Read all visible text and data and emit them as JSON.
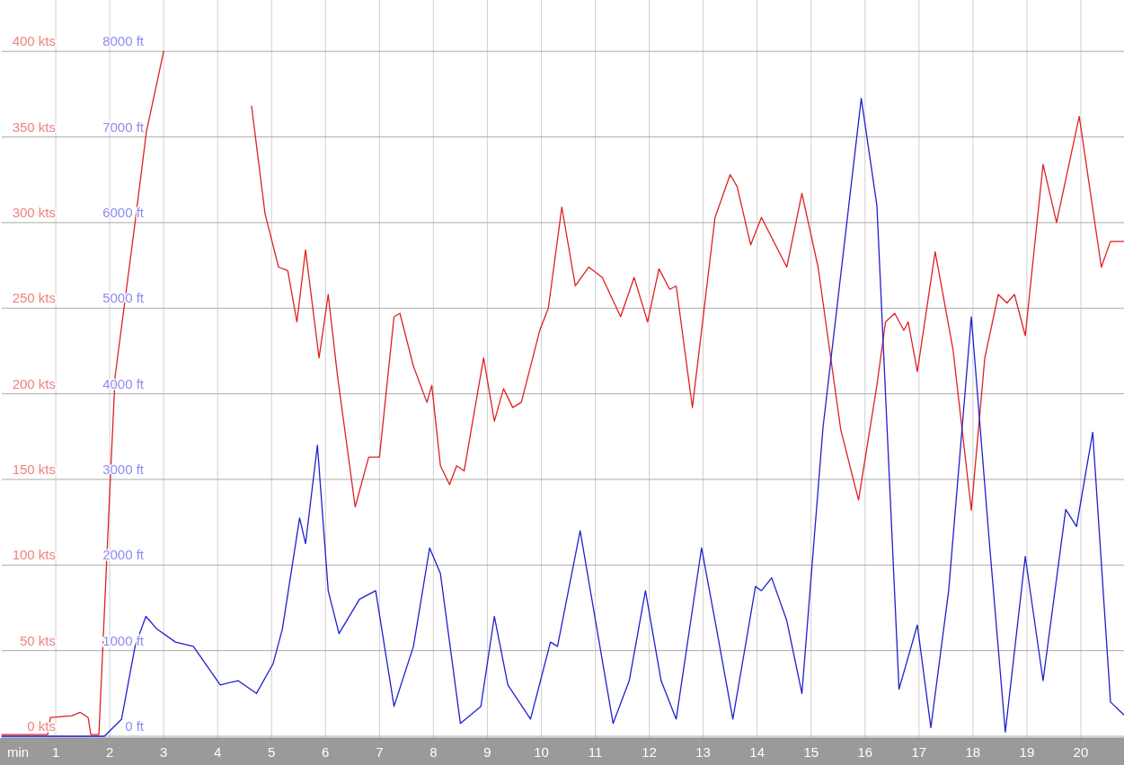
{
  "chart_data": {
    "type": "line",
    "xlabel": "min",
    "xlim": [
      0,
      20.8
    ],
    "xticks": [
      1,
      2,
      3,
      4,
      5,
      6,
      7,
      8,
      9,
      10,
      11,
      12,
      13,
      14,
      15,
      16,
      17,
      18,
      19,
      20
    ],
    "ylim": [
      0,
      430
    ],
    "yticks": [
      {
        "value": 0,
        "label": "0 kts"
      },
      {
        "value": 50,
        "label": "50 kts"
      },
      {
        "value": 100,
        "label": "100 kts"
      },
      {
        "value": 150,
        "label": "150 kts"
      },
      {
        "value": 200,
        "label": "200 kts"
      },
      {
        "value": 250,
        "label": "250 kts"
      },
      {
        "value": 300,
        "label": "300 kts"
      },
      {
        "value": 350,
        "label": "350 kts"
      },
      {
        "value": 400,
        "label": "400 kts"
      }
    ],
    "y2lim": [
      0,
      8600
    ],
    "y2ticks": [
      {
        "value": 0,
        "label": "0 ft"
      },
      {
        "value": 1000,
        "label": "1000 ft"
      },
      {
        "value": 2000,
        "label": "2000 ft"
      },
      {
        "value": 3000,
        "label": "3000 ft"
      },
      {
        "value": 4000,
        "label": "4000 ft"
      },
      {
        "value": 5000,
        "label": "5000 ft"
      },
      {
        "value": 6000,
        "label": "6000 ft"
      },
      {
        "value": 7000,
        "label": "7000 ft"
      },
      {
        "value": 8000,
        "label": "8000 ft"
      }
    ],
    "grid": true,
    "marker": "none",
    "line_style": "solid",
    "series": [
      {
        "color": "#e02020",
        "x": [
          0,
          0.85,
          0.9,
          1.3,
          1.45,
          1.6,
          1.65,
          1.8,
          2.0,
          2.1,
          2.47,
          2.68,
          3.0,
          3.17,
          3.8,
          4.43,
          4.63,
          4.88,
          5.13,
          5.3,
          5.47,
          5.63,
          5.88,
          6.05,
          6.22,
          6.55,
          6.8,
          7.0,
          7.27,
          7.38,
          7.63,
          7.88,
          7.97,
          8.13,
          8.3,
          8.43,
          8.57,
          8.93,
          9.13,
          9.3,
          9.47,
          9.63,
          9.97,
          10.13,
          10.38,
          10.63,
          10.88,
          11.13,
          11.47,
          11.72,
          11.97,
          12.18,
          12.38,
          12.5,
          12.8,
          13.22,
          13.5,
          13.63,
          13.88,
          14.08,
          14.55,
          14.83,
          15.13,
          15.55,
          15.88,
          16.22,
          16.38,
          16.55,
          16.72,
          16.8,
          16.97,
          17.3,
          17.63,
          17.97,
          18.22,
          18.47,
          18.63,
          18.77,
          18.97,
          19.3,
          19.55,
          19.97,
          20.38,
          20.55,
          20.8
        ],
        "values": [
          1,
          1,
          11,
          12,
          14,
          11,
          1,
          1,
          142,
          210,
          300,
          353,
          400,
          null,
          null,
          null,
          368,
          305,
          274,
          272,
          242,
          284,
          221,
          258,
          211,
          134,
          163,
          163,
          245,
          247,
          216,
          195,
          205,
          158,
          147,
          158,
          155,
          221,
          184,
          203,
          192,
          195,
          237,
          250,
          309,
          263,
          274,
          268,
          245,
          268,
          242,
          273,
          261,
          263,
          192,
          303,
          328,
          321,
          287,
          303,
          274,
          317,
          274,
          179,
          138,
          205,
          242,
          247,
          237,
          242,
          213,
          283,
          226,
          132,
          221,
          258,
          253,
          258,
          234,
          334,
          300,
          362,
          274,
          289,
          289
        ]
      },
      {
        "color": "#2020d0",
        "axis": "y2",
        "x": [
          0,
          1.9,
          2.22,
          2.47,
          2.67,
          2.88,
          3.22,
          3.55,
          4.05,
          4.38,
          4.72,
          5.03,
          5.2,
          5.52,
          5.63,
          5.85,
          6.05,
          6.25,
          6.63,
          6.93,
          7.27,
          7.63,
          7.93,
          8.13,
          8.5,
          8.88,
          9.13,
          9.38,
          9.8,
          10.17,
          10.3,
          10.72,
          11.33,
          11.63,
          11.93,
          12.22,
          12.5,
          12.97,
          13.22,
          13.55,
          13.97,
          14.08,
          14.27,
          14.55,
          14.83,
          15.22,
          15.93,
          16.22,
          16.63,
          16.97,
          17.22,
          17.55,
          17.97,
          18.3,
          18.6,
          18.97,
          19.3,
          19.72,
          19.92,
          20.22,
          20.55,
          20.8
        ],
        "values": [
          0,
          0,
          200,
          1050,
          1400,
          1250,
          1100,
          1050,
          600,
          650,
          500,
          850,
          1250,
          2550,
          2250,
          3400,
          1700,
          1200,
          1600,
          1700,
          350,
          1050,
          2200,
          1900,
          150,
          350,
          1400,
          600,
          200,
          1100,
          1050,
          2400,
          150,
          650,
          1700,
          650,
          200,
          2200,
          1350,
          200,
          1750,
          1700,
          1850,
          1350,
          500,
          3600,
          7450,
          6200,
          550,
          1300,
          100,
          1700,
          4900,
          2300,
          50,
          2100,
          650,
          2650,
          2450,
          3550,
          400,
          250
        ]
      }
    ]
  }
}
